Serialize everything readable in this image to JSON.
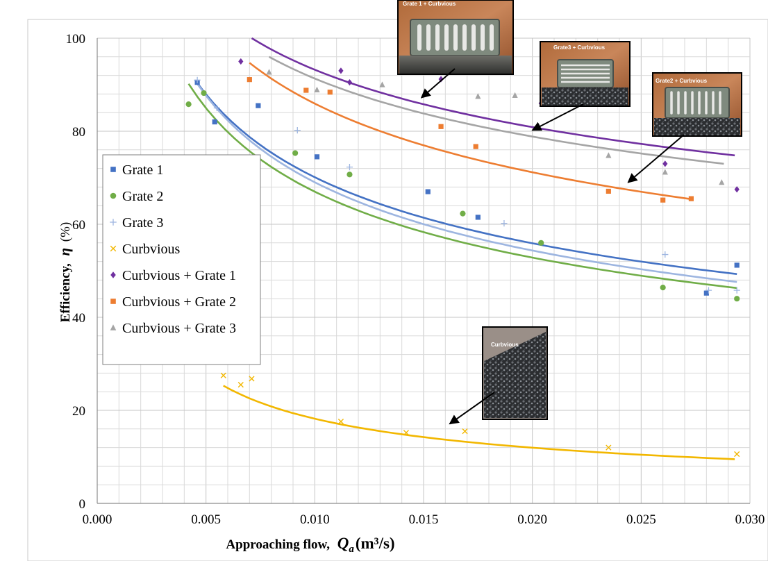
{
  "chart_data": {
    "type": "scatter",
    "title": "",
    "xlabel": "Approaching flow,",
    "xlabel_symbol": "Q",
    "xlabel_sub": "a",
    "xlabel_units": "(m³/s)",
    "ylabel": "Efficiency,",
    "ylabel_symbol": "η",
    "ylabel_units": "(%)",
    "xlim": [
      0.0,
      0.03
    ],
    "ylim": [
      0,
      100
    ],
    "x_ticks": [
      "0.000",
      "0.005",
      "0.010",
      "0.015",
      "0.020",
      "0.025",
      "0.030"
    ],
    "y_ticks": [
      "0",
      "20",
      "40",
      "60",
      "80",
      "100"
    ],
    "grid": true,
    "legend_position": "left",
    "series": [
      {
        "name": "Grate 1",
        "marker": "square",
        "color": "#4472C4",
        "points": [
          [
            0.0046,
            90.5
          ],
          [
            0.0054,
            82
          ],
          [
            0.0074,
            85.5
          ],
          [
            0.0101,
            74.5
          ],
          [
            0.0152,
            67
          ],
          [
            0.0175,
            61.5
          ],
          [
            0.028,
            45.2
          ],
          [
            0.0294,
            51.2
          ]
        ],
        "trend": [
          [
            0.0045,
            91
          ],
          [
            0.0294,
            49.3
          ]
        ]
      },
      {
        "name": "Grate 2",
        "marker": "circle",
        "color": "#70AD47",
        "points": [
          [
            0.0042,
            85.8
          ],
          [
            0.0049,
            88.2
          ],
          [
            0.0091,
            75.3
          ],
          [
            0.0116,
            70.7
          ],
          [
            0.0168,
            62.3
          ],
          [
            0.0204,
            56
          ],
          [
            0.026,
            46.4
          ],
          [
            0.0294,
            44
          ]
        ],
        "trend": [
          [
            0.0042,
            90.2
          ],
          [
            0.0294,
            46.3
          ]
        ]
      },
      {
        "name": "Grate 3",
        "marker": "plus",
        "color": "#9DB5E0",
        "points": [
          [
            0.0046,
            91
          ],
          [
            0.0055,
            85
          ],
          [
            0.0092,
            80.2
          ],
          [
            0.0116,
            72.3
          ],
          [
            0.0187,
            60.2
          ],
          [
            0.0261,
            53.5
          ],
          [
            0.0281,
            45.8
          ],
          [
            0.0294,
            45.8
          ]
        ],
        "trend": [
          [
            0.0046,
            90.2
          ],
          [
            0.0294,
            47.6
          ]
        ]
      },
      {
        "name": "Curbvious",
        "marker": "x",
        "color": "#F2B700",
        "points": [
          [
            0.0058,
            27.5
          ],
          [
            0.0066,
            25.5
          ],
          [
            0.0071,
            26.8
          ],
          [
            0.0112,
            17.6
          ],
          [
            0.0142,
            15.2
          ],
          [
            0.0169,
            15.5
          ],
          [
            0.0235,
            12
          ],
          [
            0.0294,
            10.6
          ]
        ],
        "trend": [
          [
            0.0058,
            25.3
          ],
          [
            0.0293,
            9.5
          ]
        ]
      },
      {
        "name": "Curbvious + Grate 1",
        "marker": "diamond",
        "color": "#7030A0",
        "points": [
          [
            0.0066,
            95
          ],
          [
            0.0112,
            93
          ],
          [
            0.0116,
            90.5
          ],
          [
            0.0158,
            91.2
          ],
          [
            0.0204,
            86
          ],
          [
            0.0261,
            73
          ],
          [
            0.0294,
            67.5
          ]
        ],
        "trend": [
          [
            0.0071,
            100
          ],
          [
            0.0293,
            74.8
          ]
        ]
      },
      {
        "name": "Curbvious + Grate 2",
        "marker": "square",
        "color": "#ED7D31",
        "points": [
          [
            0.007,
            91.1
          ],
          [
            0.0096,
            88.8
          ],
          [
            0.0107,
            88.4
          ],
          [
            0.0158,
            81
          ],
          [
            0.0174,
            76.7
          ],
          [
            0.0235,
            67.1
          ],
          [
            0.026,
            65.2
          ],
          [
            0.0273,
            65.5
          ]
        ],
        "trend": [
          [
            0.007,
            94.7
          ],
          [
            0.0273,
            65.4
          ]
        ]
      },
      {
        "name": "Curbvious + Grate 3",
        "marker": "triangle",
        "color": "#A5A5A5",
        "points": [
          [
            0.0079,
            92.7
          ],
          [
            0.0101,
            88.9
          ],
          [
            0.0131,
            90
          ],
          [
            0.0175,
            87.5
          ],
          [
            0.0192,
            87.7
          ],
          [
            0.0235,
            74.8
          ],
          [
            0.0261,
            71.2
          ],
          [
            0.0287,
            69
          ]
        ],
        "trend": [
          [
            0.0079,
            96
          ],
          [
            0.0288,
            73
          ]
        ]
      }
    ],
    "insets": [
      {
        "label": "Grate 1 + Curbvious",
        "image": "grate",
        "arrow_to": [
          0.0149,
          87.2
        ]
      },
      {
        "label": "Grate3 + Curbvious",
        "image": "grate",
        "arrow_to": [
          0.02,
          80.2
        ]
      },
      {
        "label": "Grate2 + Curbvious",
        "image": "grate",
        "arrow_to": [
          0.0244,
          69.0
        ]
      },
      {
        "label": "Curbvious",
        "image": "pervious",
        "arrow_to": [
          0.0162,
          17.1
        ]
      }
    ]
  }
}
